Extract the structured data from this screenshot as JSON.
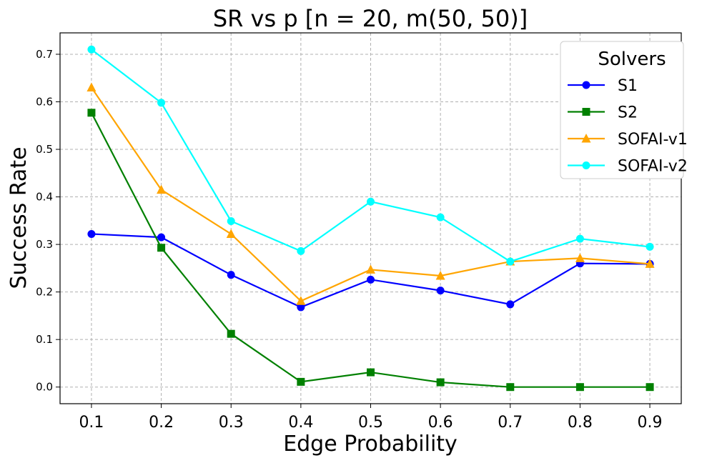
{
  "chart_data": {
    "type": "line",
    "title": "SR vs p [n = 20, m(50, 50)]",
    "xlabel": "Edge Probability",
    "ylabel": "Success Rate",
    "x": [
      0.1,
      0.2,
      0.3,
      0.4,
      0.5,
      0.6,
      0.7,
      0.8,
      0.9
    ],
    "x_ticks": [
      "0.1",
      "0.2",
      "0.3",
      "0.4",
      "0.5",
      "0.6",
      "0.7",
      "0.8",
      "0.9"
    ],
    "y_ticks": [
      "0.0",
      "0.1",
      "0.2",
      "0.3",
      "0.4",
      "0.5",
      "0.6",
      "0.7"
    ],
    "xlim": [
      0.055,
      0.945
    ],
    "ylim": [
      -0.035,
      0.745
    ],
    "grid": true,
    "legend": {
      "title": "Solvers",
      "position": "top-right"
    },
    "series": [
      {
        "name": "S1",
        "color": "#0000ff",
        "marker": "circle",
        "values": [
          0.322,
          0.315,
          0.236,
          0.168,
          0.226,
          0.203,
          0.174,
          0.26,
          0.259
        ]
      },
      {
        "name": "S2",
        "color": "#008000",
        "marker": "square",
        "values": [
          0.577,
          0.293,
          0.112,
          0.011,
          0.031,
          0.01,
          0.0,
          0.0,
          0.0
        ]
      },
      {
        "name": "SOFAI-v1",
        "color": "#ffa500",
        "marker": "triangle",
        "values": [
          0.63,
          0.415,
          0.322,
          0.181,
          0.247,
          0.234,
          0.264,
          0.271,
          0.259
        ]
      },
      {
        "name": "SOFAI-v2",
        "color": "#00ffff",
        "marker": "circle",
        "values": [
          0.71,
          0.598,
          0.349,
          0.286,
          0.39,
          0.357,
          0.264,
          0.312,
          0.295
        ]
      }
    ]
  }
}
